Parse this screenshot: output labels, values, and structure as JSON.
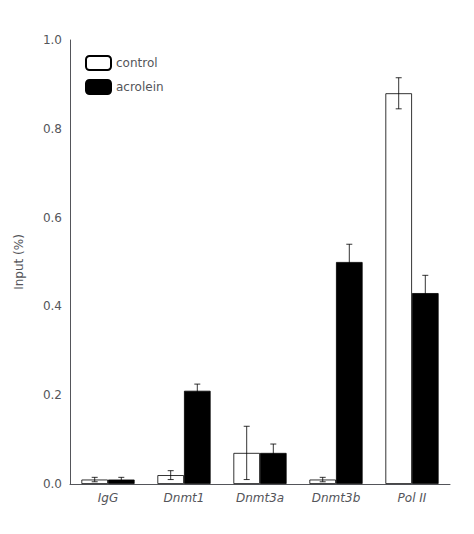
{
  "chart_data": {
    "type": "bar",
    "categories": [
      "IgG",
      "Dnmt1",
      "Dnmt3a",
      "Dnmt3b",
      "Pol II"
    ],
    "series": [
      {
        "name": "control",
        "color": "white",
        "values": [
          0.01,
          0.02,
          0.07,
          0.01,
          0.88
        ],
        "errors": [
          0.005,
          0.01,
          0.06,
          0.005,
          0.035
        ]
      },
      {
        "name": "acrolein",
        "color": "black",
        "values": [
          0.01,
          0.21,
          0.07,
          0.5,
          0.43
        ],
        "errors": [
          0.005,
          0.015,
          0.02,
          0.04,
          0.04
        ]
      }
    ],
    "ylabel": "Input (%)",
    "ylim": [
      0,
      1.0
    ],
    "yticks": [
      {
        "value": 0.0,
        "label": "0.0"
      },
      0.2,
      0.4,
      0.6,
      0.8,
      {
        "value": 1.0,
        "label": "1.0"
      }
    ],
    "legend": "upper left",
    "grid": false
  }
}
